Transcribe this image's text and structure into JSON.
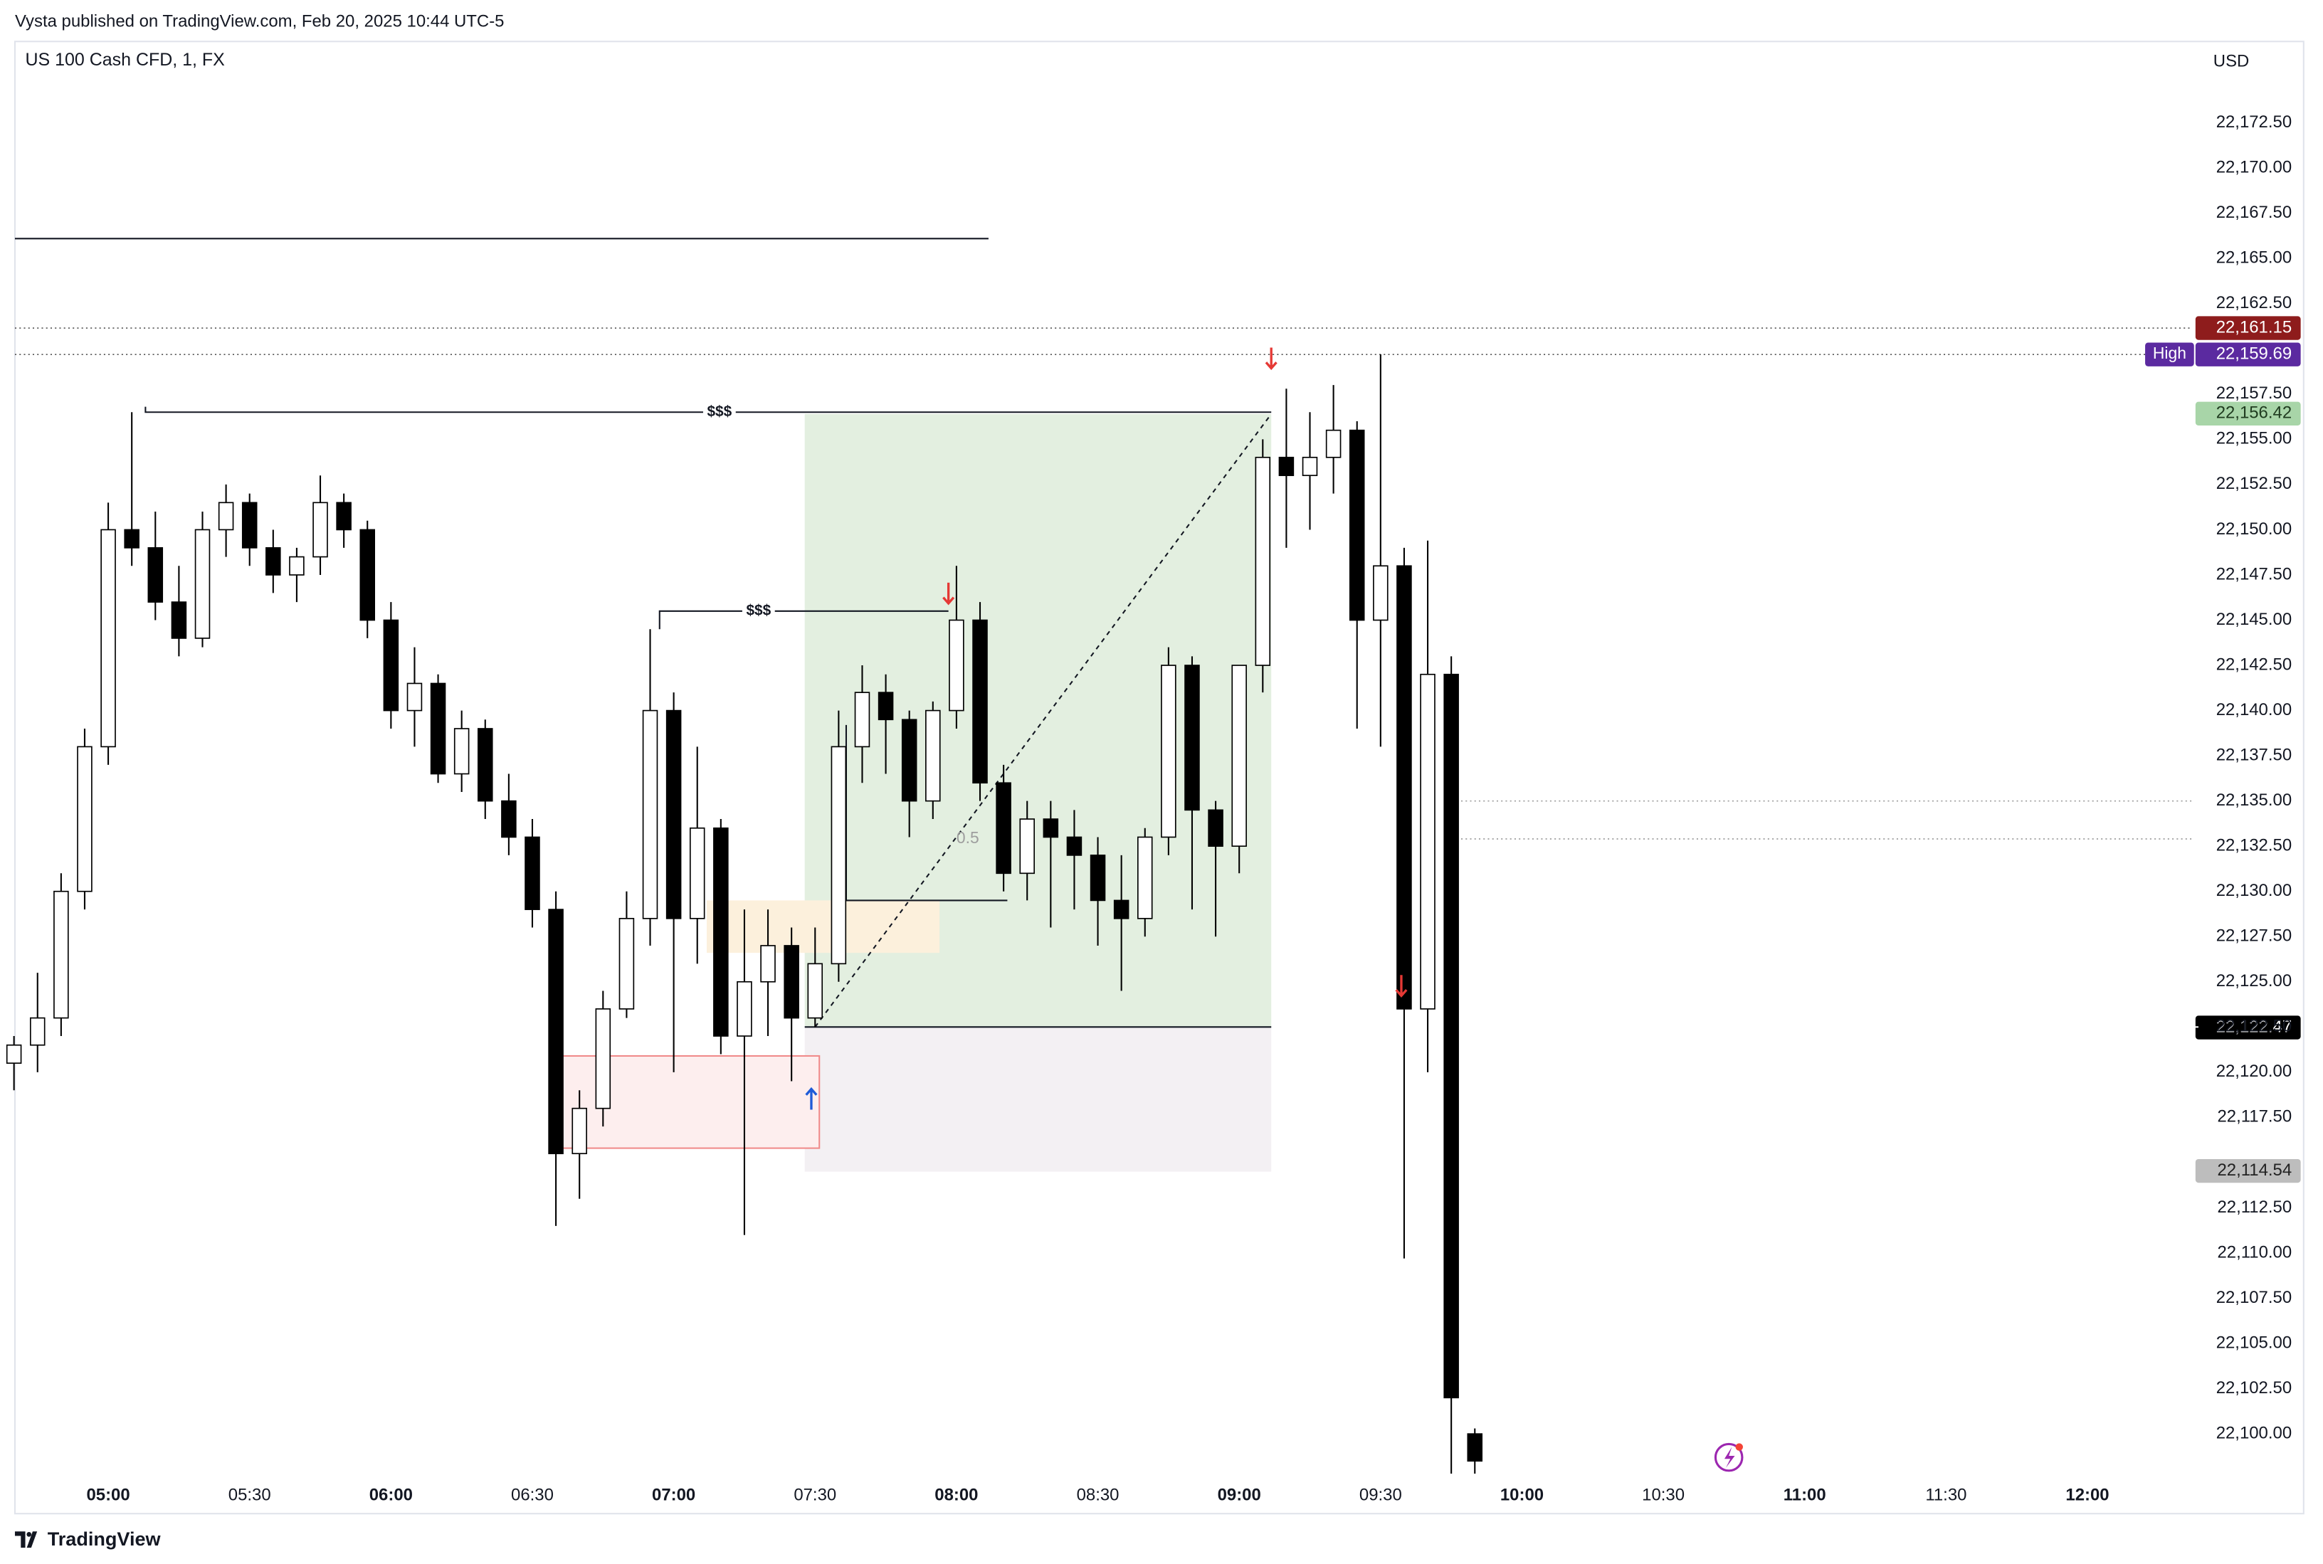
{
  "header": {
    "publisher": "Vysta published on TradingView.com, Feb 20, 2025 10:44 UTC-5",
    "brand": "TradingView"
  },
  "chart_data": {
    "type": "candlestick",
    "title": "US 100 Cash CFD, 1, FX",
    "currency": "USD",
    "up_color": "#ffffff",
    "down_color": "#000000",
    "border_color": "#000000",
    "grid": false,
    "x": [
      280,
      285,
      290,
      295,
      300,
      305,
      310,
      315,
      320,
      325,
      330,
      335,
      340,
      345,
      350,
      355,
      360,
      365,
      370,
      375,
      380,
      385,
      390,
      395,
      400,
      405,
      410,
      415,
      420,
      425,
      430,
      435,
      440,
      445,
      450,
      455,
      460,
      465,
      470,
      475,
      480,
      485,
      490,
      495,
      500,
      505,
      510,
      515,
      520,
      525,
      530,
      535,
      540,
      545,
      550,
      555,
      560,
      565,
      570,
      575,
      580,
      585,
      590
    ],
    "open": [
      22120.5,
      22121.5,
      22123,
      22130,
      22138,
      22150,
      22149,
      22146,
      22144,
      22150,
      22151.5,
      22149,
      22147.5,
      22148.5,
      22151.5,
      22150,
      22145,
      22140,
      22141.5,
      22136.5,
      22139,
      22135,
      22133,
      22129,
      22115.5,
      22118,
      22123.5,
      22128.5,
      22140,
      22128.5,
      22133.5,
      22122,
      22125,
      22127,
      22123,
      22126,
      22138,
      22141,
      22139.5,
      22135,
      22140,
      22145,
      22136,
      22131,
      22134,
      22133,
      22132,
      22129.5,
      22128.5,
      22133,
      22142.5,
      22134.5,
      22132.5,
      22142.5,
      22154,
      22153,
      22154,
      22155.5,
      22145,
      22148,
      22123.5,
      22142,
      22100
    ],
    "high": [
      22122,
      22125.5,
      22131,
      22139,
      22151.5,
      22156.5,
      22151,
      22148,
      22151,
      22152.5,
      22152,
      22150,
      22149,
      22153,
      22152,
      22150.5,
      22146,
      22143.5,
      22142,
      22140,
      22139.5,
      22136.5,
      22134,
      22130,
      22119,
      22124.5,
      22130,
      22144.5,
      22141,
      22138,
      22134,
      22129,
      22129,
      22128,
      22128,
      22140,
      22142.5,
      22142,
      22140,
      22140.5,
      22148,
      22146,
      22137,
      22135,
      22135,
      22134.5,
      22133,
      22132,
      22133.5,
      22143.5,
      22143,
      22135,
      22142.5,
      22155,
      22157.8,
      22156.5,
      22158,
      22156,
      22159.7,
      22149,
      22149.4,
      22143,
      22100.3
    ],
    "low": [
      22119,
      22120,
      22122,
      22129,
      22137,
      22148,
      22145,
      22143,
      22143.5,
      22148.5,
      22148,
      22146.5,
      22146,
      22147.5,
      22149,
      22144,
      22139,
      22138,
      22136,
      22135.5,
      22134,
      22132,
      22128,
      22111.5,
      22113,
      22117,
      22123,
      22127,
      22120,
      22126,
      22121,
      22111,
      22122,
      22119.5,
      22122.5,
      22125,
      22136,
      22136.5,
      22133,
      22134,
      22139,
      22135,
      22130,
      22129.5,
      22128,
      22129,
      22127,
      22124.5,
      22127.5,
      22132,
      22129,
      22127.5,
      22131,
      22141,
      22149,
      22150,
      22152,
      22139,
      22138,
      22109.7,
      22120,
      22097.8,
      22097.8
    ],
    "close": [
      22121.5,
      22123,
      22130,
      22138,
      22150,
      22149,
      22146,
      22144,
      22150,
      22151.5,
      22149,
      22147.5,
      22148.5,
      22151.5,
      22150,
      22145,
      22140,
      22141.5,
      22136.5,
      22139,
      22135,
      22133,
      22129,
      22115.5,
      22118,
      22123.5,
      22128.5,
      22140,
      22128.5,
      22133.5,
      22122,
      22125,
      22127,
      22123,
      22126,
      22138,
      22141,
      22139.5,
      22135,
      22140,
      22145,
      22136,
      22131,
      22134,
      22133,
      22132,
      22129.5,
      22128.5,
      22133,
      22142.5,
      22134.5,
      22132.5,
      22142.5,
      22154,
      22153,
      22154,
      22155.5,
      22145,
      22148,
      22123.5,
      22142,
      22102,
      22098.5
    ],
    "xlim": [
      280.2,
      742.3
    ],
    "ylim": [
      22097.8,
      22177.0
    ],
    "xticks": [
      {
        "value": 300,
        "label": "05:00"
      },
      {
        "value": 330,
        "label": "05:30"
      },
      {
        "value": 360,
        "label": "06:00"
      },
      {
        "value": 390,
        "label": "06:30"
      },
      {
        "value": 420,
        "label": "07:00"
      },
      {
        "value": 450,
        "label": "07:30"
      },
      {
        "value": 480,
        "label": "08:00"
      },
      {
        "value": 510,
        "label": "08:30"
      },
      {
        "value": 540,
        "label": "09:00"
      },
      {
        "value": 570,
        "label": "09:30"
      },
      {
        "value": 600,
        "label": "10:00"
      },
      {
        "value": 630,
        "label": "10:30"
      },
      {
        "value": 660,
        "label": "11:00"
      },
      {
        "value": 690,
        "label": "11:30"
      },
      {
        "value": 720,
        "label": "12:00"
      }
    ],
    "yticks": [
      {
        "value": 22172.5,
        "label": "22,172.50"
      },
      {
        "value": 22170,
        "label": "22,170.00"
      },
      {
        "value": 22167.5,
        "label": "22,167.50"
      },
      {
        "value": 22165,
        "label": "22,165.00"
      },
      {
        "value": 22162.5,
        "label": "22,162.50"
      },
      {
        "value": 22157.5,
        "label": "22,157.50"
      },
      {
        "value": 22155,
        "label": "22,155.00"
      },
      {
        "value": 22152.5,
        "label": "22,152.50"
      },
      {
        "value": 22150,
        "label": "22,150.00"
      },
      {
        "value": 22147.5,
        "label": "22,147.50"
      },
      {
        "value": 22145,
        "label": "22,145.00"
      },
      {
        "value": 22142.5,
        "label": "22,142.50"
      },
      {
        "value": 22140,
        "label": "22,140.00"
      },
      {
        "value": 22137.5,
        "label": "22,137.50"
      },
      {
        "value": 22135,
        "label": "22,135.00"
      },
      {
        "value": 22132.5,
        "label": "22,132.50"
      },
      {
        "value": 22130,
        "label": "22,130.00"
      },
      {
        "value": 22127.5,
        "label": "22,127.50"
      },
      {
        "value": 22125,
        "label": "22,125.00"
      },
      {
        "value": 22122.5,
        "label": "22,122.50"
      },
      {
        "value": 22120,
        "label": "22,120.00"
      },
      {
        "value": 22117.5,
        "label": "22,117.50"
      },
      {
        "value": 22112.5,
        "label": "22,112.50"
      },
      {
        "value": 22110,
        "label": "22,110.00"
      },
      {
        "value": 22107.5,
        "label": "22,107.50"
      },
      {
        "value": 22105,
        "label": "22,105.00"
      },
      {
        "value": 22102.5,
        "label": "22,102.50"
      },
      {
        "value": 22100,
        "label": "22,100.00"
      }
    ],
    "price_labels": [
      {
        "value": 22161.15,
        "label": "22,161.15",
        "color": "#8e1c1c",
        "text_color": "#ffffff",
        "dotted": true
      },
      {
        "value": 22159.69,
        "label": "22,159.69",
        "tag": "High",
        "color": "#5b2aa0",
        "text_color": "#ffffff",
        "dotted": true
      },
      {
        "value": 22156.42,
        "label": "22,156.42",
        "color": "#a8d5a8",
        "text_color": "#1f3b1f",
        "dotted": false
      },
      {
        "value": 22122.47,
        "label": "22,122.47",
        "color": "#000000",
        "text_color": "#ffffff",
        "dotted": false
      },
      {
        "value": 22114.54,
        "label": "22,114.54",
        "color": "#bdbdbd",
        "text_color": "#222222",
        "dotted": false
      }
    ],
    "levels": [
      {
        "price": 22135.0,
        "from": 585.2
      },
      {
        "price": 22132.9,
        "from": 585.2
      }
    ],
    "boxes": [
      {
        "x1": 447.8,
        "x2": 546.8,
        "p1": 22156.4,
        "p2": 22122.5,
        "fill": "#e3efe0",
        "stroke": "none"
      },
      {
        "x1": 447.8,
        "x2": 546.8,
        "p1": 22122.5,
        "p2": 22114.5,
        "fill": "#f3f0f3",
        "stroke": "none"
      },
      {
        "x1": 427.0,
        "x2": 476.4,
        "p1": 22129.5,
        "p2": 22126.6,
        "fill": "#fcf0dc",
        "stroke": "none"
      },
      {
        "x1": 395.0,
        "x2": 450.9,
        "p1": 22120.9,
        "p2": 22115.8,
        "fill": "#fdeeee",
        "stroke": "#f08a8a"
      }
    ],
    "lines": [
      {
        "points": [
          [
            280.2,
            22166.1
          ],
          [
            486.8,
            22166.1
          ]
        ],
        "dashed": false
      },
      {
        "points": [
          [
            307.9,
            22156.8
          ],
          [
            307.9,
            22156.5
          ],
          [
            546.8,
            22156.5
          ]
        ],
        "dashed": false,
        "label": "$$$",
        "label_at": 429.7
      },
      {
        "points": [
          [
            417.0,
            22144.5
          ],
          [
            417.0,
            22145.5
          ],
          [
            478.3,
            22145.5
          ]
        ],
        "dashed": false,
        "label": "$$$",
        "label_at": 438.0
      },
      {
        "points": [
          [
            456.6,
            22139.2
          ],
          [
            456.6,
            22129.5
          ],
          [
            490.8,
            22129.5
          ]
        ],
        "dashed": false
      },
      {
        "points": [
          [
            447.8,
            22122.5
          ],
          [
            546.8,
            22122.5
          ]
        ],
        "dashed": false
      },
      {
        "points": [
          [
            450.0,
            22122.5
          ],
          [
            546.8,
            22156.4
          ]
        ],
        "dashed": true
      }
    ],
    "fib_label": {
      "text": "0.5",
      "x": 482.4,
      "price": 22132.9
    },
    "arrows": [
      {
        "x": 546.8,
        "price": 22159.5,
        "dir": "down",
        "color": "#e53935"
      },
      {
        "x": 478.3,
        "price": 22146.5,
        "dir": "down",
        "color": "#e53935"
      },
      {
        "x": 574.4,
        "price": 22124.8,
        "dir": "down",
        "color": "#e53935"
      },
      {
        "x": 449.2,
        "price": 22118.5,
        "dir": "up",
        "color": "#1e5bd8"
      }
    ]
  }
}
